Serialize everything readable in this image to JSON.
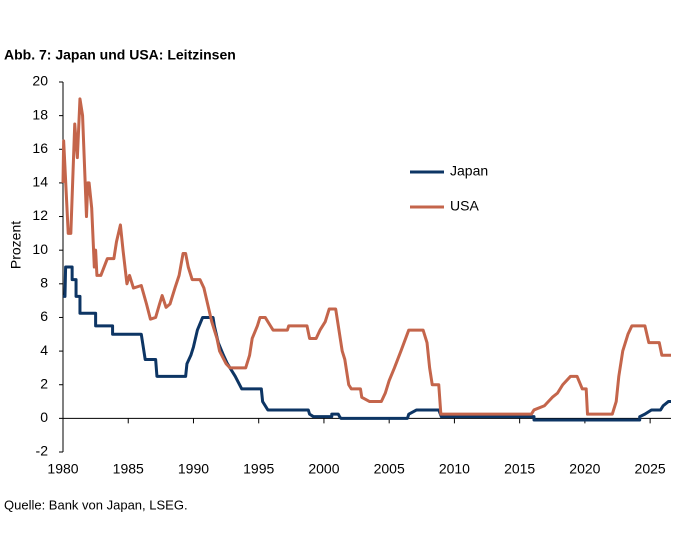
{
  "chart_data": {
    "type": "line",
    "title": "Abb. 7: Japan und USA: Leitzinsen",
    "y_label": "Prozent",
    "source": "Quelle: Bank von Japan, LSEG.",
    "xlim": [
      1980,
      2026.6
    ],
    "xticks": [
      1980,
      1985,
      1990,
      1995,
      2000,
      2005,
      2010,
      2015,
      2020,
      2025
    ],
    "ylim": [
      -2,
      20
    ],
    "yticks": [
      -2,
      0,
      2,
      4,
      6,
      8,
      10,
      12,
      14,
      16,
      18,
      20
    ],
    "grid": false,
    "legend": "right",
    "series": [
      {
        "name": "Japan",
        "color": "#0d3564",
        "x": [
          1980,
          1980.15,
          1980.2,
          1980.7,
          1980.7,
          1981,
          1981,
          1981.3,
          1981.3,
          1982.5,
          1982.5,
          1983.8,
          1983.8,
          1986,
          1986.1,
          1986.3,
          1987.1,
          1987.2,
          1989.4,
          1989.5,
          1989.8,
          1990,
          1990.3,
          1990.7,
          1991.5,
          1991.6,
          1991.9,
          1992.3,
          1992.6,
          1993.2,
          1993.7,
          1995.2,
          1995.3,
          1995.7,
          1998.8,
          1998.9,
          1999.2,
          2000.6,
          2000.6,
          2001.1,
          2001.2,
          2001.3,
          2006.4,
          2006.5,
          2007.1,
          2008.8,
          2008.9,
          2009,
          2016.1,
          2016.1,
          2024.2,
          2024.2,
          2024.6,
          2025.1,
          2025.8,
          2026,
          2026.4,
          2026.6
        ],
        "values": [
          7.25,
          7.25,
          9,
          9,
          8.25,
          8.25,
          7.25,
          7.25,
          6.25,
          6.25,
          5.5,
          5.5,
          5,
          5,
          4.5,
          3.5,
          3.5,
          2.5,
          2.5,
          3.25,
          3.75,
          4.25,
          5.25,
          6,
          6,
          5.5,
          4.5,
          3.75,
          3.25,
          2.5,
          1.75,
          1.75,
          1,
          0.5,
          0.5,
          0.25,
          0.1,
          0.1,
          0.25,
          0.25,
          0.1,
          0,
          0,
          0.25,
          0.5,
          0.5,
          0.3,
          0.1,
          0.1,
          -0.1,
          -0.1,
          0.1,
          0.25,
          0.5,
          0.5,
          0.75,
          1,
          1
        ]
      },
      {
        "name": "USA",
        "color": "#c4654b",
        "x": [
          1980,
          1980.05,
          1980.4,
          1980.6,
          1980.9,
          1981.1,
          1981.3,
          1981.5,
          1981.8,
          1981.9,
          1982,
          1982.2,
          1982.4,
          1982.5,
          1982.6,
          1982.9,
          1983.4,
          1983.9,
          1984.1,
          1984.4,
          1984.6,
          1984.9,
          1985.1,
          1985.4,
          1986,
          1986.4,
          1986.7,
          1987.1,
          1987.4,
          1987.6,
          1987.9,
          1988.2,
          1988.6,
          1988.9,
          1989.2,
          1989.4,
          1989.6,
          1989.9,
          1990.5,
          1990.8,
          1991.1,
          1991.4,
          1991.8,
          1992,
          1992.5,
          1992.8,
          1994,
          1994.3,
          1994.5,
          1994.9,
          1995.1,
          1995.5,
          1995.9,
          1996.1,
          1997.2,
          1997.3,
          1998.7,
          1998.9,
          1999.4,
          1999.7,
          2000.1,
          2000.4,
          2000.9,
          2001.1,
          2001.4,
          2001.6,
          2001.9,
          2002.1,
          2002.8,
          2002.9,
          2003.5,
          2004.4,
          2004.7,
          2005,
          2005.4,
          2005.9,
          2006.5,
          2007.6,
          2007.9,
          2008.1,
          2008.3,
          2008.8,
          2008.96,
          2015.9,
          2016.1,
          2016.9,
          2017.5,
          2017.9,
          2018.3,
          2018.9,
          2019.4,
          2019.8,
          2020.1,
          2020.2,
          2022.1,
          2022.4,
          2022.6,
          2022.9,
          2023.3,
          2023.6,
          2024.6,
          2024.9,
          2025.7,
          2025.9,
          2026.6
        ],
        "values": [
          14,
          16.5,
          11,
          11,
          17.5,
          15.5,
          19,
          18,
          12,
          14,
          14,
          12.5,
          9,
          10,
          8.5,
          8.5,
          9.5,
          9.5,
          10.5,
          11.5,
          10,
          8,
          8.5,
          7.75,
          7.9,
          6.8,
          5.9,
          6,
          6.8,
          7.3,
          6.6,
          6.8,
          7.8,
          8.5,
          9.8,
          9.8,
          9,
          8.25,
          8.25,
          7.75,
          6.75,
          5.75,
          4.75,
          4,
          3.25,
          3,
          3,
          3.75,
          4.75,
          5.5,
          6,
          6,
          5.5,
          5.25,
          5.25,
          5.5,
          5.5,
          4.75,
          4.75,
          5.25,
          5.75,
          6.5,
          6.5,
          5.5,
          4,
          3.5,
          2,
          1.75,
          1.75,
          1.25,
          1,
          1,
          1.5,
          2.25,
          3,
          4,
          5.25,
          5.25,
          4.5,
          3,
          2,
          2,
          0.25,
          0.25,
          0.5,
          0.75,
          1.25,
          1.5,
          2,
          2.5,
          2.5,
          1.75,
          1.75,
          0.25,
          0.25,
          1,
          2.5,
          4,
          5,
          5.5,
          5.5,
          4.5,
          4.5,
          3.75,
          3.75
        ]
      }
    ]
  }
}
